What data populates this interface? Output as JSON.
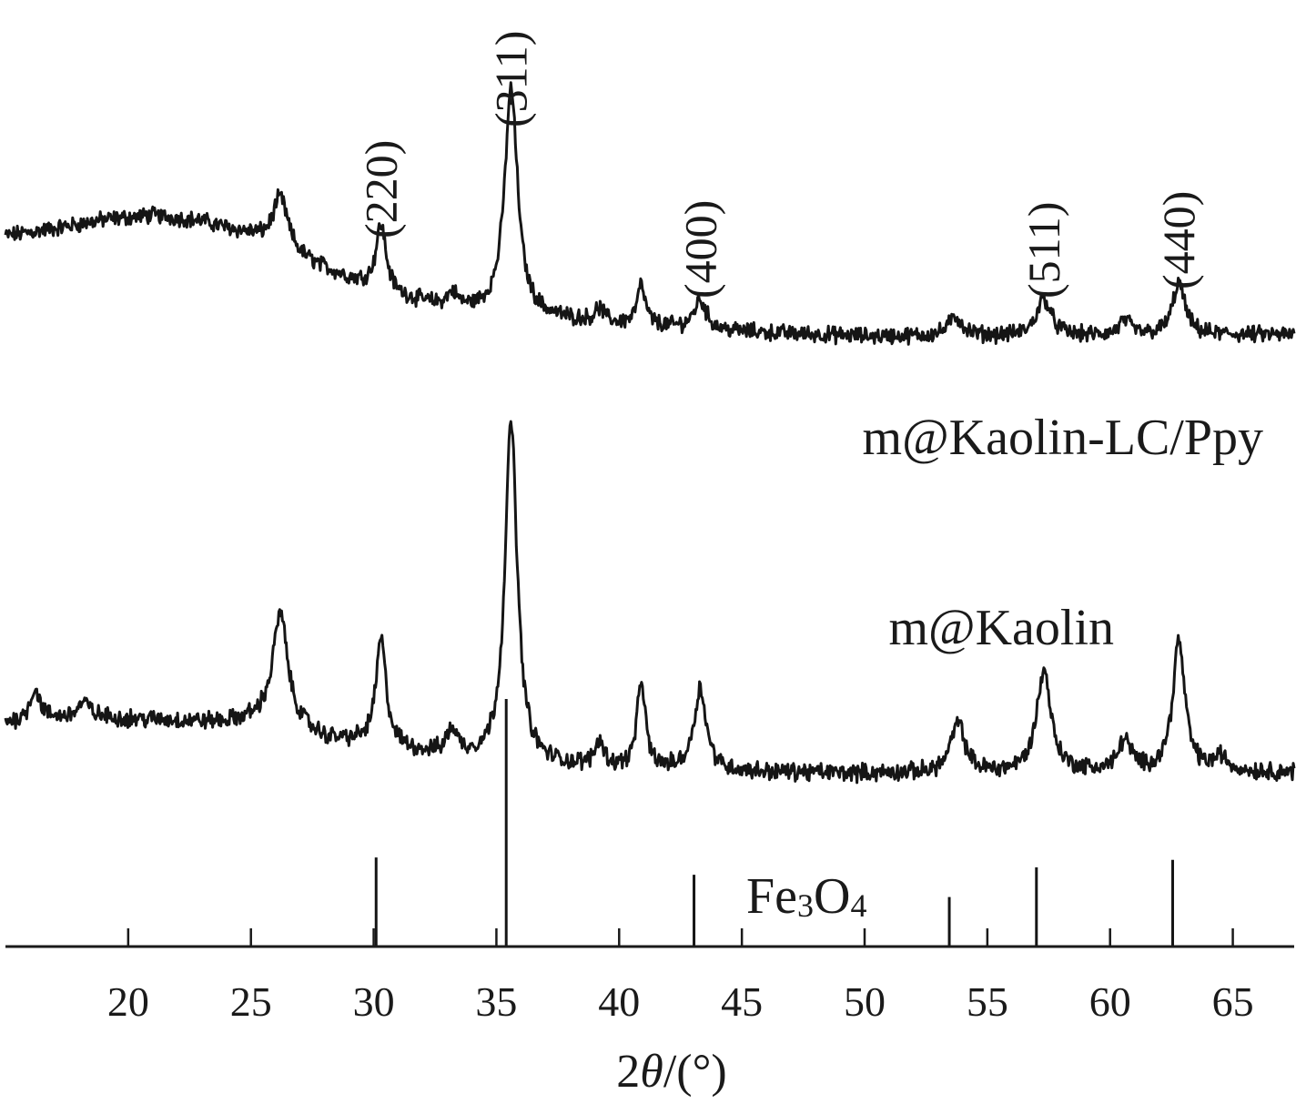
{
  "chart_data": {
    "type": "line",
    "title": "",
    "xlabel": {
      "prefix": "2",
      "theta": "θ",
      "suffix": "/(°)"
    },
    "ylabel": "",
    "xlim": [
      15,
      67.5
    ],
    "xticks": [
      20,
      25,
      30,
      35,
      40,
      45,
      50,
      55,
      60,
      65
    ],
    "grid": false,
    "legend": "none",
    "colors": {
      "line": "#151515",
      "axis": "#1a1a1a"
    },
    "series": [
      {
        "name": "m@Kaolin-LC/Ppy",
        "baseline": [
          [
            15,
            0.88
          ],
          [
            17,
            0.93
          ],
          [
            19,
            0.99
          ],
          [
            21,
            1.02
          ],
          [
            23,
            0.98
          ],
          [
            25,
            0.88
          ],
          [
            27,
            0.72
          ],
          [
            29,
            0.58
          ],
          [
            31,
            0.46
          ],
          [
            33,
            0.38
          ],
          [
            36,
            0.33
          ],
          [
            40,
            0.27
          ],
          [
            45,
            0.22
          ],
          [
            50,
            0.19
          ],
          [
            55,
            0.19
          ],
          [
            60,
            0.19
          ],
          [
            65,
            0.2
          ],
          [
            67.5,
            0.2
          ]
        ],
        "peaks": [
          [
            26.2,
            0.36,
            0.38
          ],
          [
            30.3,
            0.45,
            0.25
          ],
          [
            33.2,
            0.1,
            0.25
          ],
          [
            35.6,
            1.55,
            0.32
          ],
          [
            39.2,
            0.09,
            0.22
          ],
          [
            40.9,
            0.27,
            0.2
          ],
          [
            43.3,
            0.2,
            0.3
          ],
          [
            53.7,
            0.13,
            0.35
          ],
          [
            57.3,
            0.26,
            0.35
          ],
          [
            60.6,
            0.1,
            0.3
          ],
          [
            62.8,
            0.36,
            0.3
          ]
        ],
        "noise": 0.045
      },
      {
        "name": "m@Kaolin",
        "baseline": [
          [
            15,
            0.36
          ],
          [
            18,
            0.4
          ],
          [
            21,
            0.38
          ],
          [
            24,
            0.36
          ],
          [
            26,
            0.4
          ],
          [
            28,
            0.24
          ],
          [
            30,
            0.2
          ],
          [
            32,
            0.14
          ],
          [
            34,
            0.1
          ],
          [
            36,
            0.06
          ],
          [
            40,
            0.03
          ],
          [
            45,
            0.01
          ],
          [
            50,
            0.0
          ],
          [
            55,
            0.0
          ],
          [
            60,
            0.01
          ],
          [
            65,
            0.01
          ],
          [
            67.5,
            0.01
          ]
        ],
        "peaks": [
          [
            16.2,
            0.22,
            0.25
          ],
          [
            18.2,
            0.1,
            0.3
          ],
          [
            26.2,
            0.75,
            0.35
          ],
          [
            30.3,
            0.75,
            0.25
          ],
          [
            33.2,
            0.18,
            0.25
          ],
          [
            35.6,
            2.42,
            0.3
          ],
          [
            39.2,
            0.18,
            0.22
          ],
          [
            40.9,
            0.62,
            0.2
          ],
          [
            43.3,
            0.58,
            0.3
          ],
          [
            53.8,
            0.35,
            0.35
          ],
          [
            57.3,
            0.72,
            0.35
          ],
          [
            60.6,
            0.22,
            0.3
          ],
          [
            62.8,
            0.92,
            0.3
          ],
          [
            64.5,
            0.1,
            0.3
          ]
        ],
        "noise": 0.05
      }
    ],
    "reference": {
      "name": "Fe3O4",
      "name_parts": [
        "Fe",
        "3",
        "O",
        "4"
      ],
      "lines": [
        [
          30.1,
          0.36
        ],
        [
          35.4,
          1.0
        ],
        [
          43.05,
          0.29
        ],
        [
          53.45,
          0.2
        ],
        [
          57.0,
          0.32
        ],
        [
          62.55,
          0.35
        ]
      ]
    },
    "hkl_labels": [
      {
        "text": "(220)",
        "x": 30.3
      },
      {
        "text": "(311)",
        "x": 35.6
      },
      {
        "text": "(400)",
        "x": 43.3
      },
      {
        "text": "(511)",
        "x": 57.3
      },
      {
        "text": "(440)",
        "x": 62.8
      }
    ]
  }
}
